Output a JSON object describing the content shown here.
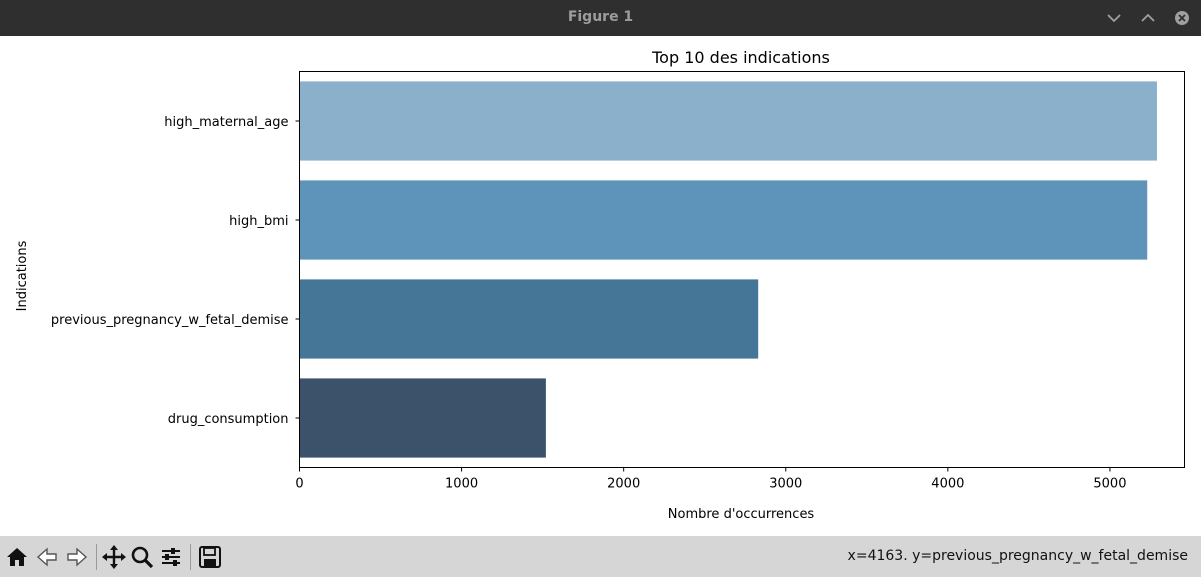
{
  "window": {
    "title": "Figure 1",
    "icons": [
      "chevron-down-icon",
      "chevron-up-icon",
      "close-icon"
    ]
  },
  "toolbar": {
    "icons": [
      "home-icon",
      "back-arrow-icon",
      "forward-arrow-icon",
      "pan-icon",
      "zoom-icon",
      "configure-subplots-icon",
      "save-icon"
    ],
    "status": "x=4163. y=previous_pregnancy_w_fetal_demise"
  },
  "chart_data": {
    "type": "bar",
    "orientation": "horizontal",
    "title": "Top 10 des indications",
    "xlabel": "Nombre d'occurrences",
    "ylabel": "Indications",
    "categories": [
      "high_maternal_age",
      "high_bmi",
      "previous_pregnancy_w_fetal_demise",
      "drug_consumption"
    ],
    "values": [
      5290,
      5230,
      2830,
      1520
    ],
    "colors": [
      "#8ab0cb",
      "#5e94ba",
      "#457697",
      "#3c526a"
    ],
    "xlim": [
      0,
      5460
    ],
    "xticks": [
      0,
      1000,
      2000,
      3000,
      4000,
      5000
    ],
    "xtick_labels": [
      "0",
      "1000",
      "2000",
      "3000",
      "4000",
      "5000"
    ],
    "grid": false,
    "legend": false
  }
}
